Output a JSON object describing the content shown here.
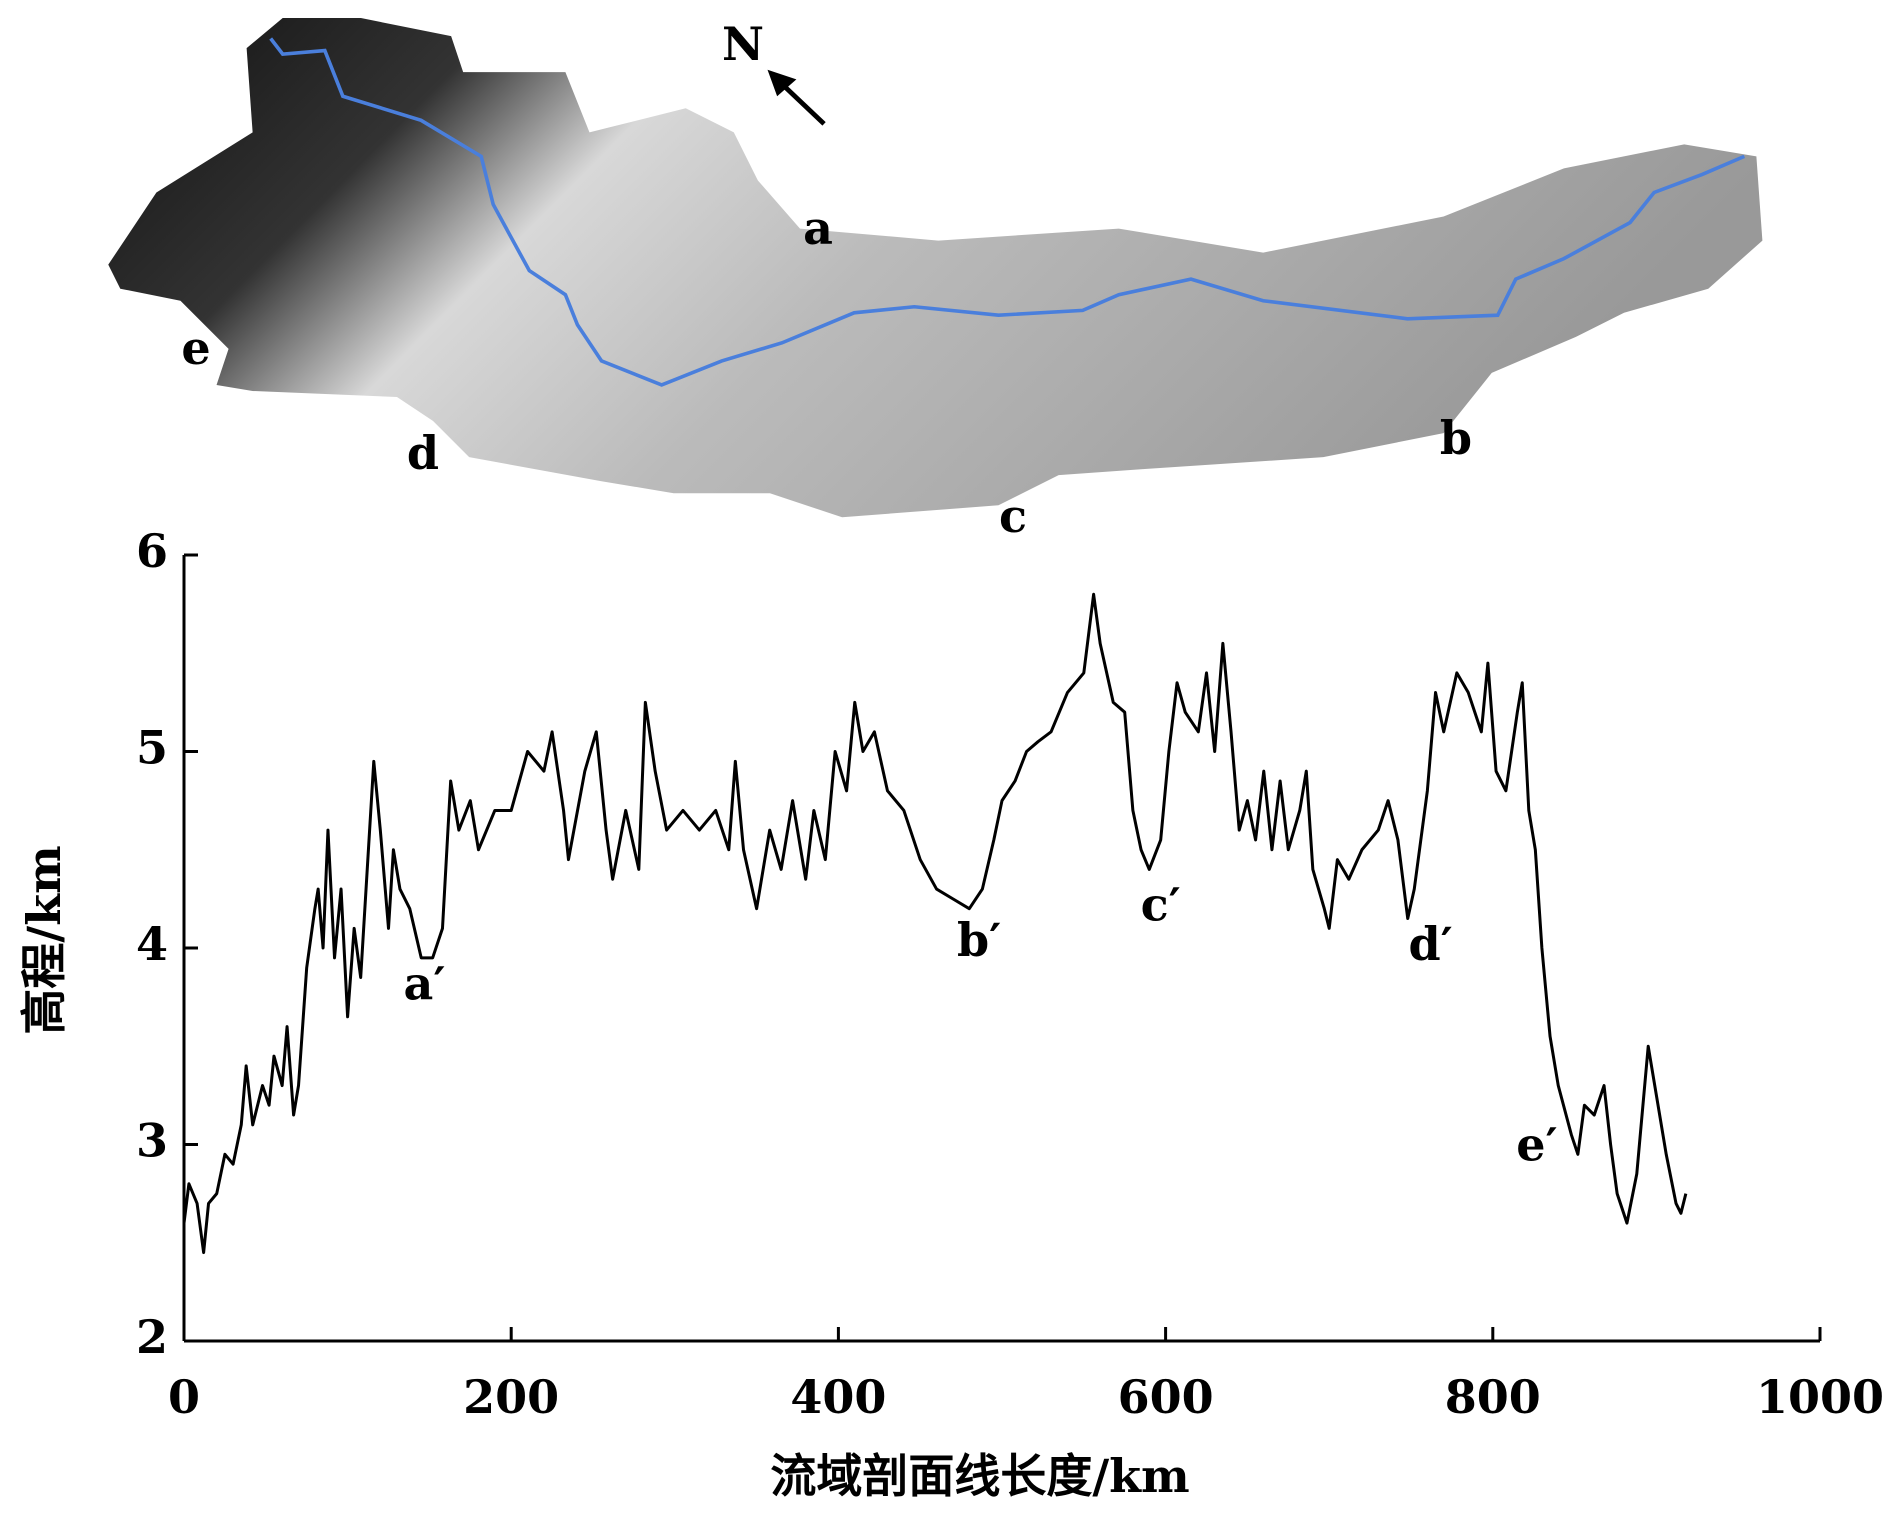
{
  "chart_data": {
    "type": "line",
    "xlabel": "流域剖面线长度/km",
    "ylabel": "高程/km",
    "x": [
      0,
      3,
      8,
      12,
      15,
      20,
      25,
      30,
      35,
      38,
      42,
      48,
      52,
      55,
      60,
      63,
      67,
      70,
      75,
      80,
      82,
      85,
      88,
      92,
      96,
      100,
      104,
      108,
      112,
      116,
      120,
      125,
      128,
      132,
      138,
      145,
      152,
      158,
      163,
      168,
      175,
      180,
      190,
      200,
      210,
      220,
      225,
      232,
      235,
      245,
      252,
      258,
      262,
      270,
      278,
      282,
      288,
      295,
      305,
      315,
      325,
      333,
      337,
      342,
      350,
      358,
      365,
      372,
      380,
      385,
      392,
      398,
      405,
      410,
      415,
      422,
      430,
      440,
      450,
      460,
      470,
      480,
      488,
      495,
      500,
      508,
      515,
      522,
      530,
      540,
      550,
      556,
      560,
      568,
      575,
      580,
      585,
      590,
      597,
      602,
      607,
      612,
      620,
      625,
      630,
      635,
      640,
      645,
      650,
      655,
      660,
      665,
      670,
      675,
      682,
      686,
      690,
      697,
      700,
      705,
      712,
      720,
      730,
      736,
      742,
      748,
      752,
      760,
      765,
      770,
      778,
      785,
      793,
      797,
      802,
      808,
      815,
      818,
      822,
      826,
      830,
      835,
      840,
      848,
      852,
      856,
      862,
      868,
      872,
      876,
      882,
      888,
      895,
      900,
      906,
      912,
      915,
      918
    ],
    "values": [
      2.6,
      2.8,
      2.7,
      2.45,
      2.7,
      2.75,
      2.95,
      2.9,
      3.1,
      3.4,
      3.1,
      3.3,
      3.2,
      3.45,
      3.3,
      3.6,
      3.15,
      3.3,
      3.9,
      4.2,
      4.3,
      4.0,
      4.6,
      3.95,
      4.3,
      3.65,
      4.1,
      3.85,
      4.4,
      4.95,
      4.6,
      4.1,
      4.5,
      4.3,
      4.2,
      3.95,
      3.95,
      4.1,
      4.85,
      4.6,
      4.75,
      4.5,
      4.7,
      4.7,
      5.0,
      4.9,
      5.1,
      4.7,
      4.45,
      4.9,
      5.1,
      4.6,
      4.35,
      4.7,
      4.4,
      5.25,
      4.9,
      4.6,
      4.7,
      4.6,
      4.7,
      4.5,
      4.95,
      4.5,
      4.2,
      4.6,
      4.4,
      4.75,
      4.35,
      4.7,
      4.45,
      5.0,
      4.8,
      5.25,
      5.0,
      5.1,
      4.8,
      4.7,
      4.45,
      4.3,
      4.25,
      4.2,
      4.3,
      4.55,
      4.75,
      4.85,
      5.0,
      5.05,
      5.1,
      5.3,
      5.4,
      5.8,
      5.55,
      5.25,
      5.2,
      4.7,
      4.5,
      4.4,
      4.55,
      5.0,
      5.35,
      5.2,
      5.1,
      5.4,
      5.0,
      5.55,
      5.1,
      4.6,
      4.75,
      4.55,
      4.9,
      4.5,
      4.85,
      4.5,
      4.7,
      4.9,
      4.4,
      4.2,
      4.1,
      4.45,
      4.35,
      4.5,
      4.6,
      4.75,
      4.55,
      4.15,
      4.3,
      4.8,
      5.3,
      5.1,
      5.4,
      5.3,
      5.1,
      5.45,
      4.9,
      4.8,
      5.2,
      5.35,
      4.7,
      4.5,
      4.0,
      3.55,
      3.3,
      3.05,
      2.95,
      3.2,
      3.15,
      3.3,
      3.0,
      2.75,
      2.6,
      2.85,
      3.5,
      3.25,
      2.95,
      2.7,
      2.65,
      2.75
    ],
    "color": "#000000",
    "xlim": [
      0,
      1000
    ],
    "xticks": [
      0,
      200,
      400,
      600,
      800,
      1000
    ],
    "ylim": [
      2,
      6
    ],
    "yticks": [
      2,
      3,
      4,
      5,
      6
    ],
    "annotations": [
      {
        "text": "a′",
        "x": 147,
        "y": 3.8
      },
      {
        "text": "b′",
        "x": 486,
        "y": 4.02
      },
      {
        "text": "c′",
        "x": 597,
        "y": 4.2
      },
      {
        "text": "d′",
        "x": 762,
        "y": 4.0
      },
      {
        "text": "e′",
        "x": 827,
        "y": 2.98
      }
    ]
  },
  "map": {
    "north": "N",
    "labels": [
      "a",
      "b",
      "c",
      "d",
      "e"
    ]
  }
}
